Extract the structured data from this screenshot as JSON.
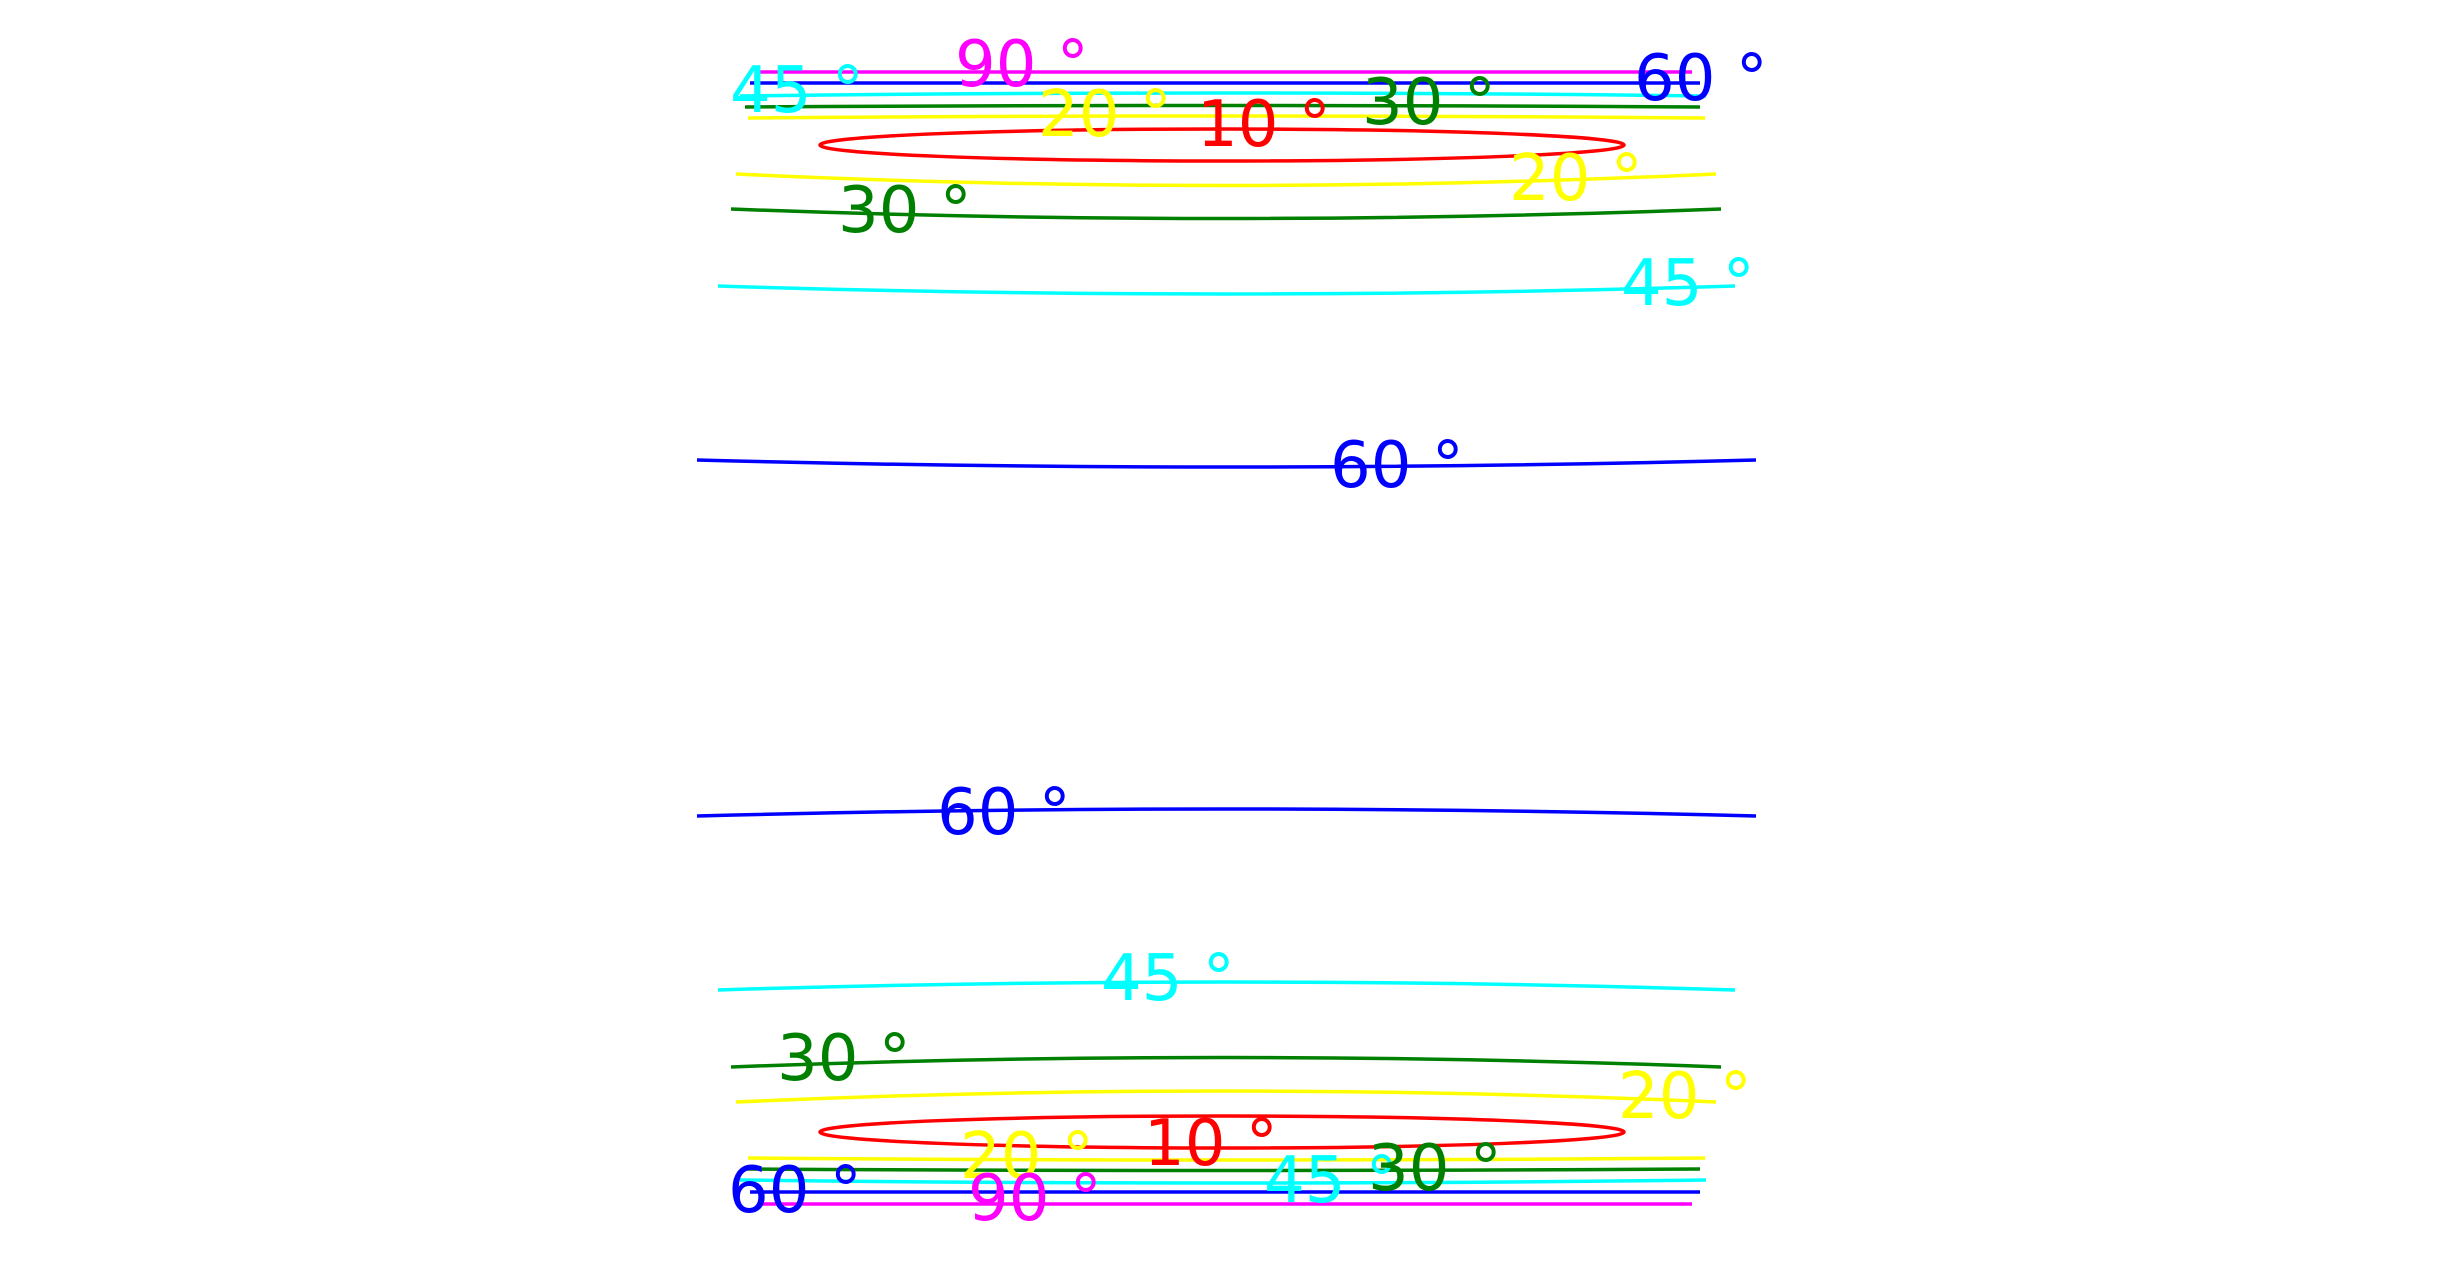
{
  "chart_data": {
    "type": "contour",
    "grid": false,
    "levels": [
      {
        "value": 10,
        "color": "#ff0000"
      },
      {
        "value": 20,
        "color": "#ffff00"
      },
      {
        "value": 30,
        "color": "#008000"
      },
      {
        "value": 45,
        "color": "#00ffff"
      },
      {
        "value": 60,
        "color": "#0000ff"
      },
      {
        "value": 90,
        "color": "#ff00ff"
      }
    ],
    "contour_labels": [
      {
        "text": "45 °",
        "level": 45
      },
      {
        "text": "90 °",
        "level": 90
      },
      {
        "text": "20 °",
        "level": 20
      },
      {
        "text": "10 °",
        "level": 10
      },
      {
        "text": "30 °",
        "level": 30
      },
      {
        "text": "60 °",
        "level": 60
      },
      {
        "text": "20 °",
        "level": 20
      },
      {
        "text": "30 °",
        "level": 30
      },
      {
        "text": "45 °",
        "level": 45
      },
      {
        "text": "60 °",
        "level": 60
      },
      {
        "text": "60 °",
        "level": 60
      },
      {
        "text": "45 °",
        "level": 45
      },
      {
        "text": "30 °",
        "level": 30
      },
      {
        "text": "20 °",
        "level": 20
      },
      {
        "text": "20 °",
        "level": 20
      },
      {
        "text": "10 °",
        "level": 10
      },
      {
        "text": "45 °",
        "level": 45
      },
      {
        "text": "30 °",
        "level": 30
      },
      {
        "text": "60 °",
        "level": 60
      },
      {
        "text": "90 °",
        "level": 90
      }
    ]
  }
}
